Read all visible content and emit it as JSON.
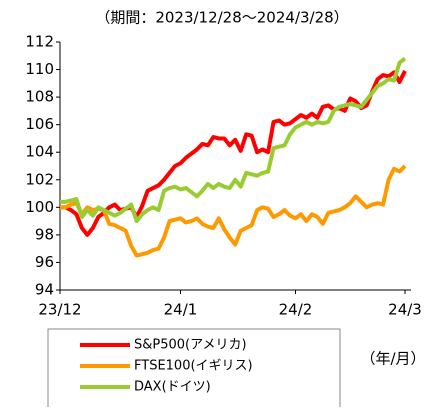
{
  "chart_data": {
    "type": "line",
    "title": "（期間：2023/12/28～2024/3/28）",
    "unit_label": "（年/月）",
    "categories": [
      "23/12",
      null,
      null,
      null,
      null,
      null,
      null,
      null,
      null,
      null,
      null,
      null,
      null,
      null,
      null,
      null,
      null,
      null,
      null,
      null,
      null,
      null,
      "24/1",
      null,
      null,
      null,
      null,
      null,
      null,
      null,
      null,
      null,
      null,
      null,
      null,
      null,
      null,
      null,
      null,
      null,
      null,
      null,
      null,
      "24/2",
      null,
      null,
      null,
      null,
      null,
      null,
      null,
      null,
      null,
      null,
      null,
      null,
      null,
      null,
      null,
      null,
      null,
      null,
      null,
      "24/3"
    ],
    "ylim": [
      94,
      112
    ],
    "yticks": [
      94,
      96,
      98,
      100,
      102,
      104,
      106,
      108,
      110,
      112
    ],
    "legend": "bottom-left",
    "series": [
      {
        "name": "S&P500(アメリカ)",
        "color": "#ff0000",
        "values": [
          100,
          100,
          99.8,
          99.5,
          98.5,
          98,
          98.5,
          99.3,
          99.6,
          100,
          100.2,
          99.8,
          99.9,
          100,
          99.3,
          100.1,
          101.2,
          101.4,
          101.6,
          102,
          102.5,
          103,
          103.2,
          103.6,
          103.9,
          104.2,
          104.6,
          104.5,
          105.1,
          105,
          105,
          104.5,
          104.9,
          104.1,
          105.3,
          105.2,
          104,
          104.2,
          104,
          106.2,
          106.3,
          106,
          106.1,
          106.4,
          106.7,
          106.5,
          106.8,
          106.5,
          107.3,
          107.4,
          107.1,
          107.2,
          107,
          107.9,
          107.7,
          107.2,
          107.4,
          108.4,
          109.3,
          109.6,
          109.5,
          109.8,
          109.1,
          109.9
        ]
      },
      {
        "name": "FTSE100(イギリス)",
        "color": "#ff9900",
        "values": [
          100,
          100,
          100.2,
          100.3,
          99.5,
          100,
          99.8,
          99.9,
          99.8,
          98.8,
          98.7,
          98.5,
          98.3,
          97.2,
          96.5,
          96.6,
          96.7,
          96.9,
          97,
          97.8,
          99,
          99.1,
          99.2,
          98.9,
          99,
          99.2,
          98.8,
          98.6,
          98.5,
          99.2,
          98.4,
          97.8,
          97.3,
          98.3,
          98.5,
          98.7,
          99.8,
          100,
          99.9,
          99.3,
          99.5,
          99.8,
          99.4,
          99.2,
          99.5,
          99,
          99.5,
          99.3,
          98.8,
          99.6,
          99.7,
          99.8,
          100,
          100.3,
          100.8,
          100.4,
          100,
          100.2,
          100.3,
          100.2,
          102,
          102.8,
          102.6,
          103
        ]
      },
      {
        "name": "DAX(ドイツ)",
        "color": "#99cc33",
        "values": [
          100.4,
          100.4,
          100.5,
          100.6,
          99.3,
          99.8,
          99.4,
          100,
          99.8,
          99.6,
          99.4,
          99.6,
          99.9,
          100.2,
          99,
          99.5,
          99.8,
          100,
          99.8,
          101.2,
          101.4,
          101.5,
          101.3,
          101.4,
          101.1,
          100.8,
          101.2,
          101.7,
          101.4,
          101.7,
          101.5,
          101.4,
          102,
          101.5,
          102.5,
          102.4,
          102.3,
          102.5,
          102.6,
          104.3,
          104.4,
          104.5,
          105.3,
          105.8,
          106,
          106.2,
          106,
          106.2,
          106.1,
          106.2,
          107,
          107.3,
          107.4,
          107.5,
          107.4,
          107.3,
          107.8,
          108.3,
          108.8,
          109,
          109.3,
          109.2,
          110.5,
          110.8
        ]
      }
    ]
  }
}
